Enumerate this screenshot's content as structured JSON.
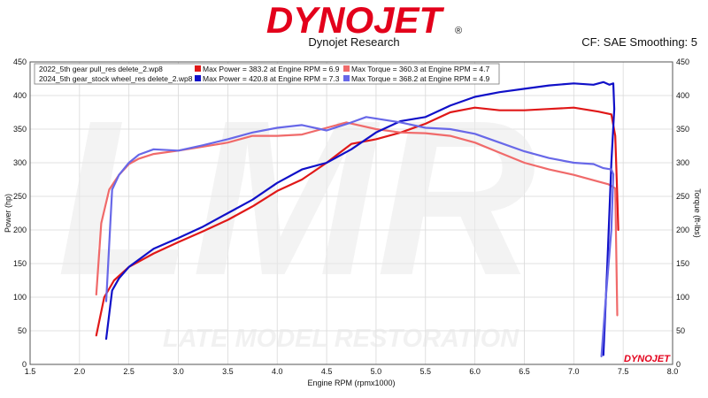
{
  "header": {
    "brand": "DYNOJET",
    "brand_mark": "®",
    "subtitle": "Dynojet Research",
    "cf_info": "CF: SAE Smoothing: 5",
    "watermark_text": "LATE MODEL RESTORATION",
    "watermark_logo": "LMR",
    "footer_brand": "DYNOJET"
  },
  "colors": {
    "brand_red": "#e3001b",
    "power_2022": "#e01818",
    "torque_2022": "#f06a6a",
    "power_2024": "#1010c8",
    "torque_2024": "#6868e8"
  },
  "chart_data": {
    "type": "line",
    "xlabel": "Engine RPM (rpmx1000)",
    "ylabel_left": "Power (hp)",
    "ylabel_right": "Torque (ft-lbs)",
    "xlim": [
      1.5,
      8.0
    ],
    "ylim": [
      0,
      450
    ],
    "x_ticks": [
      "1.5",
      "2.0",
      "2.5",
      "3.0",
      "3.5",
      "4.0",
      "4.5",
      "5.0",
      "5.5",
      "6.0",
      "6.5",
      "7.0",
      "7.5",
      "8.0"
    ],
    "y_ticks": [
      "0",
      "50",
      "100",
      "150",
      "200",
      "250",
      "300",
      "350",
      "400",
      "450"
    ],
    "grid": true,
    "legend": {
      "placement": "top-left",
      "runs": [
        "2022_5th gear pull_res delete_2.wp8",
        "2024_5th gear_stock wheel_res delete_2.wp8"
      ],
      "entries": [
        [
          "Max Power = 383.2 at Engine RPM = 6.9",
          "Max Torque = 360.3 at Engine RPM = 4.7"
        ],
        [
          "Max Power = 420.8 at Engine RPM = 7.3",
          "Max Torque = 368.2 at Engine RPM = 4.9"
        ]
      ]
    },
    "series": [
      {
        "key": "power_2022",
        "x": [
          2.17,
          2.25,
          2.35,
          2.5,
          2.75,
          3.0,
          3.25,
          3.5,
          3.75,
          4.0,
          4.25,
          4.5,
          4.75,
          5.0,
          5.25,
          5.5,
          5.75,
          6.0,
          6.25,
          6.5,
          6.75,
          7.0,
          7.25,
          7.38,
          7.42,
          7.44,
          7.45
        ],
        "y": [
          43,
          100,
          125,
          145,
          165,
          182,
          198,
          215,
          235,
          258,
          275,
          300,
          328,
          335,
          345,
          358,
          375,
          382,
          378,
          378,
          380,
          382,
          376,
          372,
          340,
          250,
          200
        ]
      },
      {
        "key": "torque_2022",
        "x": [
          2.17,
          2.22,
          2.3,
          2.4,
          2.5,
          2.6,
          2.75,
          3.0,
          3.25,
          3.5,
          3.75,
          4.0,
          4.25,
          4.5,
          4.7,
          5.0,
          5.25,
          5.5,
          5.75,
          6.0,
          6.25,
          6.5,
          6.75,
          7.0,
          7.25,
          7.35,
          7.42,
          7.44
        ],
        "y": [
          104,
          210,
          260,
          282,
          298,
          306,
          313,
          318,
          324,
          330,
          340,
          340,
          342,
          352,
          360,
          350,
          345,
          344,
          340,
          330,
          315,
          300,
          290,
          282,
          272,
          268,
          262,
          73
        ]
      },
      {
        "key": "power_2024",
        "x": [
          2.27,
          2.33,
          2.4,
          2.5,
          2.75,
          3.0,
          3.25,
          3.5,
          3.75,
          4.0,
          4.25,
          4.5,
          4.75,
          5.0,
          5.25,
          5.5,
          5.75,
          6.0,
          6.25,
          6.5,
          6.75,
          7.0,
          7.2,
          7.3,
          7.36,
          7.4,
          7.41,
          7.38,
          7.34,
          7.3
        ],
        "y": [
          38,
          110,
          128,
          145,
          172,
          188,
          205,
          225,
          245,
          270,
          290,
          300,
          320,
          345,
          362,
          368,
          385,
          398,
          405,
          410,
          415,
          418,
          416,
          420,
          416,
          418,
          380,
          300,
          150,
          14
        ]
      },
      {
        "key": "torque_2024",
        "x": [
          2.27,
          2.33,
          2.4,
          2.5,
          2.6,
          2.75,
          3.0,
          3.25,
          3.5,
          3.75,
          4.0,
          4.25,
          4.5,
          4.75,
          4.9,
          5.25,
          5.5,
          5.75,
          6.0,
          6.25,
          6.5,
          6.75,
          7.0,
          7.2,
          7.3,
          7.38,
          7.4,
          7.38,
          7.32,
          7.28
        ],
        "y": [
          94,
          260,
          282,
          300,
          312,
          320,
          318,
          326,
          335,
          345,
          352,
          356,
          348,
          360,
          368,
          360,
          352,
          350,
          343,
          330,
          317,
          307,
          300,
          298,
          292,
          290,
          283,
          200,
          90,
          12
        ]
      }
    ]
  }
}
